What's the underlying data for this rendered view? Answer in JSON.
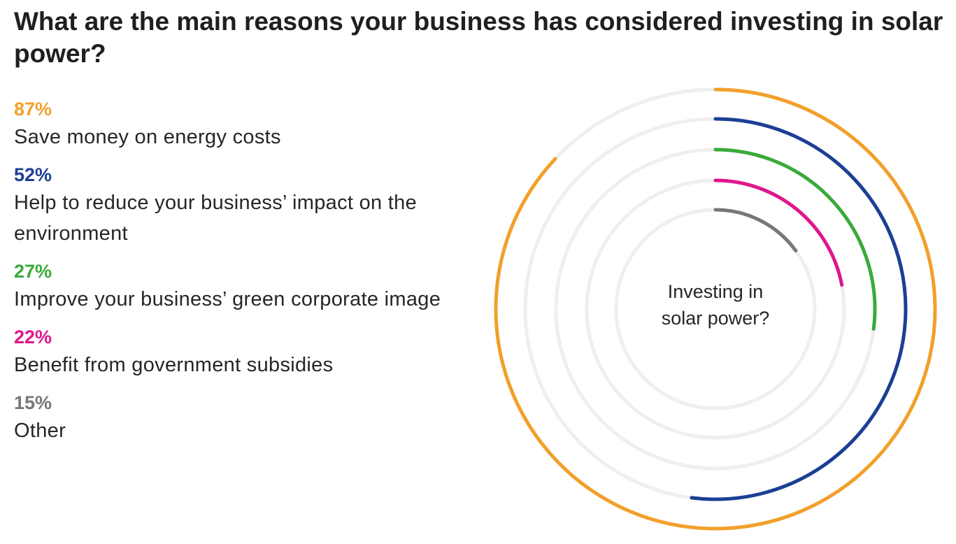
{
  "title": "What are the main reasons your business has considered investing in solar power?",
  "chart_data": {
    "type": "radial-bar",
    "center_label": [
      "Investing in",
      "solar power?"
    ],
    "max": 100,
    "series": [
      {
        "value": 87,
        "value_label": "87%",
        "label": "Save money on energy costs",
        "color": "#f2a02a"
      },
      {
        "value": 52,
        "value_label": "52%",
        "label": "Help to reduce your business’ impact on the environment",
        "color": "#1c3f94"
      },
      {
        "value": 27,
        "value_label": "27%",
        "label": "Improve your business’ green corporate image",
        "color": "#3aaa3a"
      },
      {
        "value": 22,
        "value_label": "22%",
        "label": "Benefit from government subsidies",
        "color": "#e0168c"
      },
      {
        "value": 15,
        "value_label": "15%",
        "label": "Other",
        "color": "#777777"
      }
    ],
    "track_color": "#efefef"
  }
}
